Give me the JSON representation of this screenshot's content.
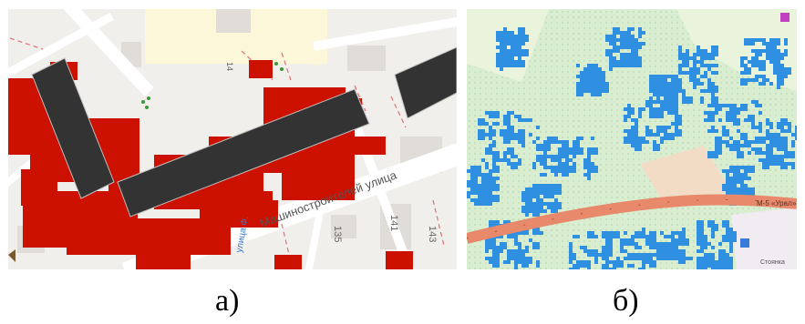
{
  "figure": {
    "panel_a": {
      "caption": "а)",
      "street_label": "Машиностроителей улица",
      "side_label": "улица Ф.",
      "house_numbers": [
        "14",
        "143",
        "141",
        "135"
      ],
      "colors": {
        "raster": "#cc1100",
        "building": "#333333",
        "road": "#ffffff",
        "map_bg": "#f1efec",
        "yellow_area": "#fbf7d8",
        "block": "#e0dcd8"
      }
    },
    "panel_b": {
      "caption": "б)",
      "road_label": "М-5 «Урал»",
      "stop_label": "Стоянка",
      "colors": {
        "raster": "#2f8fe0",
        "forest": "#d9eed1",
        "field": "#eaf3dc",
        "road": "#e8896b",
        "clearing": "#f3dcc6"
      }
    }
  }
}
